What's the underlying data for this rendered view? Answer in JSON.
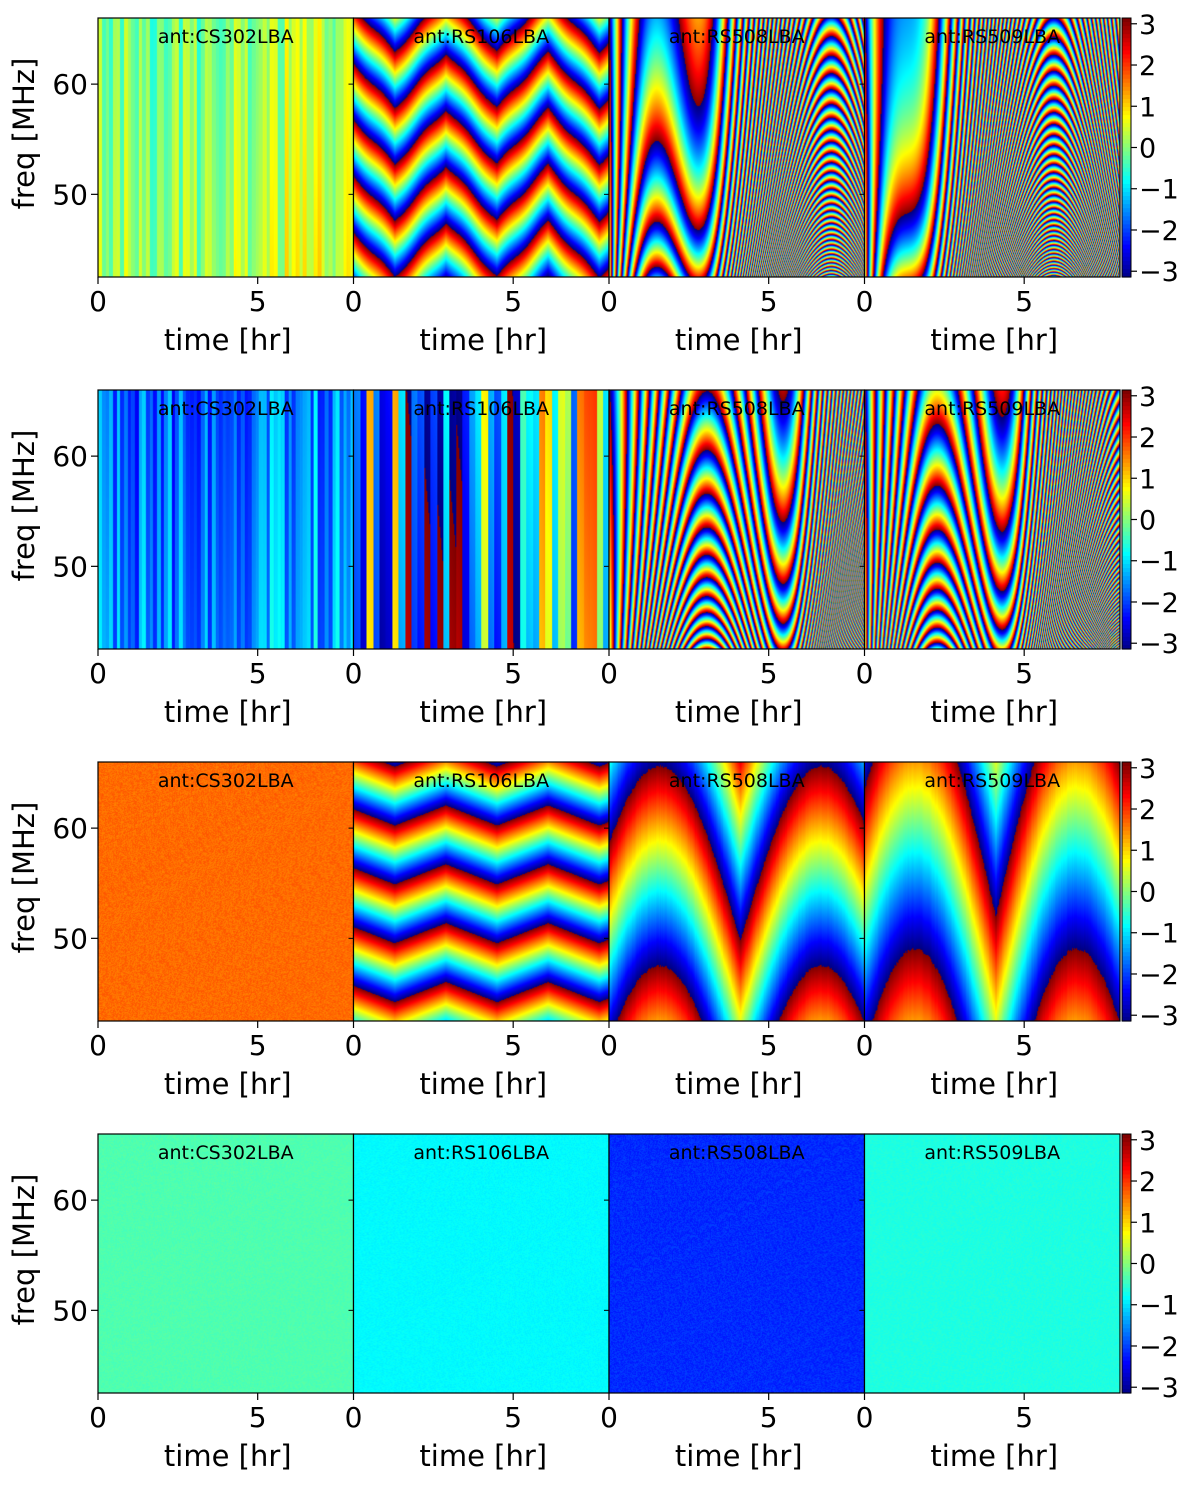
{
  "chart_data": {
    "type": "heatmap",
    "colormap": "jet",
    "x_axis": {
      "label": "time [hr]",
      "range": [
        0,
        8
      ],
      "ticks": [
        0,
        5
      ]
    },
    "y_axis": {
      "label": "freq [MHz]",
      "range": [
        42.5,
        66
      ],
      "ticks": [
        50,
        60
      ]
    },
    "colorbar": {
      "range": [
        -3.14,
        3.14
      ],
      "ticks": [
        3,
        2,
        1,
        0,
        -1,
        -2,
        -3
      ]
    },
    "antennas": [
      "ant:CS302LBA",
      "ant:RS106LBA",
      "ant:RS508LBA",
      "ant:RS509LBA"
    ],
    "rows": [
      {
        "row": 1,
        "panels": [
          {
            "antenna": "ant:CS302LBA",
            "pattern": "stripes",
            "base": 0.35,
            "amp": 0.65,
            "stripe_count": 70
          },
          {
            "antenna": "ant:RS106LBA",
            "pattern": "zigzag-bands",
            "band_cycles": 4.6,
            "zigzag_amp": 1.0
          },
          {
            "antenna": "ant:RS508LBA",
            "pattern": "fast-vertical-wraps",
            "wraps": 20
          },
          {
            "antenna": "ant:RS509LBA",
            "pattern": "fast-vertical-wraps",
            "wraps": 26
          }
        ]
      },
      {
        "row": 2,
        "panels": [
          {
            "antenna": "ant:CS302LBA",
            "pattern": "stripes",
            "base": -1.4,
            "amp": 0.8,
            "stripe_count": 70
          },
          {
            "antenna": "ant:RS106LBA",
            "pattern": "phase-stripes",
            "stripe_count": 40
          },
          {
            "antenna": "ant:RS508LBA",
            "pattern": "fast-vertical-wraps",
            "wraps": 18
          },
          {
            "antenna": "ant:RS509LBA",
            "pattern": "fast-vertical-wraps",
            "wraps": 22
          }
        ]
      },
      {
        "row": 3,
        "panels": [
          {
            "antenna": "ant:CS302LBA",
            "pattern": "uniform",
            "base": 1.7,
            "noise": 0.15
          },
          {
            "antenna": "ant:RS106LBA",
            "pattern": "zigzag-bands",
            "band_cycles": 4.4,
            "zigzag_amp": 0.35
          },
          {
            "antenna": "ant:RS508LBA",
            "pattern": "v-bands",
            "band_cycles": 1.3
          },
          {
            "antenna": "ant:RS509LBA",
            "pattern": "v-bands",
            "band_cycles": 1.0
          }
        ]
      },
      {
        "row": 4,
        "panels": [
          {
            "antenna": "ant:CS302LBA",
            "pattern": "uniform",
            "base": -0.3,
            "noise": 0.08
          },
          {
            "antenna": "ant:RS106LBA",
            "pattern": "uniform",
            "base": -0.8,
            "noise": 0.08
          },
          {
            "antenna": "ant:RS508LBA",
            "pattern": "uniform",
            "base": -2.1,
            "noise": 0.15
          },
          {
            "antenna": "ant:RS509LBA",
            "pattern": "uniform",
            "base": -0.6,
            "noise": 0.08
          }
        ]
      }
    ]
  }
}
